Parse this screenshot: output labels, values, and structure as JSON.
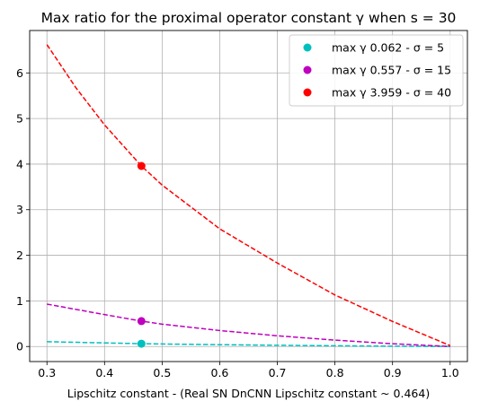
{
  "chart_data": {
    "type": "line",
    "title": "Max ratio for the proximal operator constant γ when s = 30",
    "xlabel": "Lipschitz constant - (Real SN DnCNN Lipschitz constant ~ 0.464)",
    "ylabel": "",
    "xlim": [
      0.27,
      1.03
    ],
    "ylim": [
      -0.33,
      6.93
    ],
    "x_ticks": [
      0.3,
      0.4,
      0.5,
      0.6,
      0.7,
      0.8,
      0.9,
      1.0
    ],
    "x_tick_labels": [
      "0.3",
      "0.4",
      "0.5",
      "0.6",
      "0.7",
      "0.8",
      "0.9",
      "1.0"
    ],
    "y_ticks": [
      0,
      1,
      2,
      3,
      4,
      5,
      6
    ],
    "y_tick_labels": [
      "0",
      "1",
      "2",
      "3",
      "4",
      "5",
      "6"
    ],
    "grid": true,
    "legend_position": "top-right",
    "series": [
      {
        "name": "max γ 0.062 - σ = 5",
        "color": "#00bfbf",
        "line_style": "dashed",
        "x": [
          0.3,
          0.4,
          0.464,
          0.5,
          0.6,
          0.7,
          0.8,
          0.9,
          1.0
        ],
        "y": [
          0.105,
          0.079,
          0.062,
          0.055,
          0.04,
          0.027,
          0.016,
          0.007,
          0.0
        ],
        "marker": {
          "x": 0.464,
          "y": 0.062
        }
      },
      {
        "name": "max γ 0.557 - σ = 15",
        "color": "#bf00bf",
        "line_style": "dashed",
        "x": [
          0.3,
          0.4,
          0.464,
          0.5,
          0.6,
          0.7,
          0.8,
          0.9,
          1.0
        ],
        "y": [
          0.93,
          0.7,
          0.557,
          0.49,
          0.35,
          0.235,
          0.14,
          0.06,
          0.0
        ],
        "marker": {
          "x": 0.464,
          "y": 0.557
        }
      },
      {
        "name": "max γ 3.959 - σ = 40",
        "color": "#ff0000",
        "line_style": "dashed",
        "x": [
          0.3,
          0.35,
          0.4,
          0.464,
          0.5,
          0.6,
          0.7,
          0.8,
          0.9,
          1.0
        ],
        "y": [
          6.62,
          5.68,
          4.86,
          3.959,
          3.54,
          2.58,
          1.83,
          1.13,
          0.55,
          0.02
        ],
        "marker": {
          "x": 0.464,
          "y": 3.959
        }
      }
    ]
  }
}
